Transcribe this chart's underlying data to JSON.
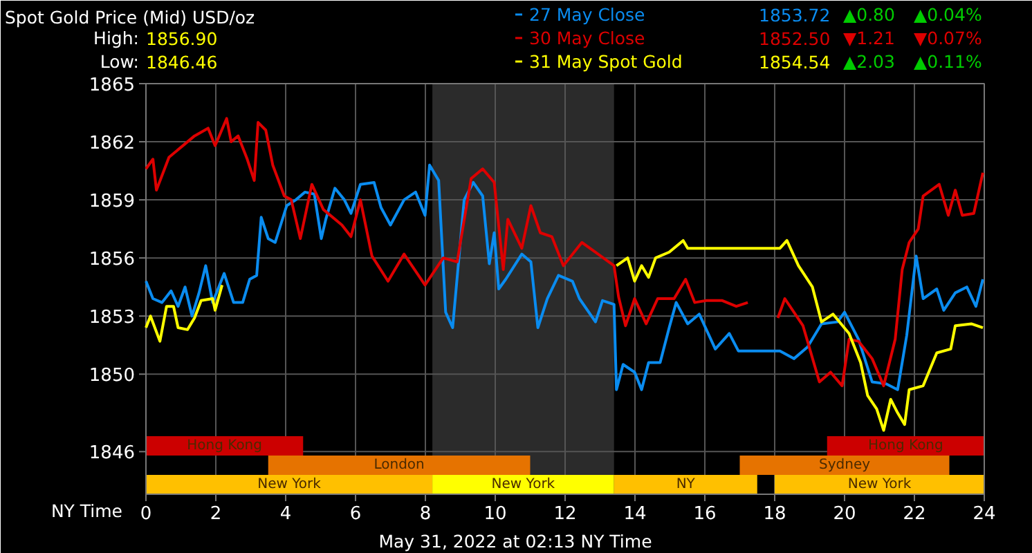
{
  "chart_data": {
    "type": "line",
    "title": "Spot Gold Price (Mid) USD/oz",
    "xlabel": "NY Time",
    "xlim": [
      0,
      24
    ],
    "xticks": [
      0,
      2,
      4,
      6,
      8,
      10,
      12,
      14,
      16,
      18,
      20,
      22,
      24
    ],
    "ylim": [
      1843.8,
      1865
    ],
    "yticks": [
      1850,
      1853,
      1856,
      1859,
      1862,
      1865,
      1846
    ],
    "grid": true,
    "legend": "top right",
    "series": [
      {
        "name": "27 May Close",
        "color": "#0a8cf0",
        "x": [
          0,
          0.2,
          0.46,
          0.72,
          0.92,
          1.12,
          1.32,
          1.52,
          1.71,
          1.91,
          2.24,
          2.51,
          2.77,
          2.97,
          3.17,
          3.3,
          3.5,
          3.7,
          4.03,
          4.29,
          4.55,
          4.82,
          5.02,
          5.15,
          5.41,
          5.68,
          5.87,
          6.14,
          6.53,
          6.73,
          7.0,
          7.39,
          7.72,
          7.99,
          8.12,
          8.38,
          8.58,
          8.78,
          9.11,
          9.37,
          9.64,
          9.83,
          9.97,
          10.1,
          10.3,
          10.76,
          11.02,
          11.22,
          11.49,
          11.81,
          12.21,
          12.41,
          12.87,
          13.07,
          13.4,
          13.47,
          13.66,
          13.99,
          14.19,
          14.39,
          14.72,
          14.98,
          15.18,
          15.51,
          15.84,
          16.3,
          16.7,
          16.96,
          18.15,
          18.55,
          18.94,
          19.34,
          19.8,
          20.0,
          20.4,
          20.79,
          21.19,
          21.52,
          21.78,
          22.05,
          22.25,
          22.64,
          22.84,
          23.17,
          23.5,
          23.76,
          23.96
        ],
        "values": [
          1854.8,
          1853.9,
          1853.7,
          1854.3,
          1853.5,
          1854.5,
          1853.0,
          1854.2,
          1855.6,
          1853.7,
          1855.2,
          1853.7,
          1853.7,
          1854.9,
          1855.1,
          1858.1,
          1857.0,
          1856.8,
          1858.7,
          1859.0,
          1859.4,
          1859.3,
          1857.0,
          1858.0,
          1859.6,
          1859.0,
          1858.3,
          1859.8,
          1859.9,
          1858.6,
          1857.7,
          1859.0,
          1859.4,
          1858.2,
          1860.8,
          1860.0,
          1853.2,
          1852.4,
          1859.0,
          1859.9,
          1859.2,
          1855.7,
          1857.3,
          1854.4,
          1854.9,
          1856.2,
          1855.8,
          1852.4,
          1853.9,
          1855.1,
          1854.8,
          1853.9,
          1852.7,
          1853.8,
          1853.6,
          1849.2,
          1850.5,
          1850.1,
          1849.2,
          1850.6,
          1850.6,
          1852.4,
          1853.7,
          1852.6,
          1853.1,
          1851.3,
          1852.1,
          1851.2,
          1851.2,
          1850.8,
          1851.4,
          1852.6,
          1852.7,
          1853.2,
          1851.8,
          1849.6,
          1849.5,
          1849.2,
          1852.0,
          1856.1,
          1853.9,
          1854.4,
          1853.3,
          1854.2,
          1854.5,
          1853.5,
          1854.9
        ]
      },
      {
        "name": "30 May Close",
        "color": "#dd0000",
        "x": [
          0,
          0.2,
          0.3,
          0.66,
          1.06,
          1.39,
          1.78,
          1.98,
          2.31,
          2.44,
          2.64,
          2.9,
          3.1,
          3.21,
          3.43,
          3.63,
          3.96,
          4.16,
          4.42,
          4.75,
          5.08,
          5.61,
          5.87,
          6.14,
          6.47,
          6.93,
          7.39,
          7.99,
          8.51,
          8.91,
          9.31,
          9.64,
          9.97,
          10.23,
          10.36,
          10.76,
          11.02,
          11.29,
          11.62,
          11.95,
          12.48,
          12.87,
          13.4,
          13.53,
          13.73,
          13.99,
          14.32,
          14.65,
          15.12,
          15.45,
          15.71,
          16.04,
          16.5,
          16.9,
          17.23,
          17.6,
          18.09,
          18.29,
          18.81,
          19.28,
          19.6,
          19.93,
          20.13,
          20.4,
          20.79,
          21.12,
          21.45,
          21.65,
          21.85,
          22.11,
          22.25,
          22.71,
          22.97,
          23.17,
          23.37,
          23.7,
          23.96
        ],
        "values": [
          1860.6,
          1861.1,
          1859.5,
          1861.2,
          1861.8,
          1862.3,
          1862.7,
          1861.8,
          1863.2,
          1862.0,
          1862.3,
          1861.1,
          1860.0,
          1863.0,
          1862.6,
          1860.8,
          1859.2,
          1859.0,
          1857.0,
          1859.8,
          1858.5,
          1857.7,
          1857.1,
          1859.0,
          1856.1,
          1854.8,
          1856.2,
          1854.6,
          1856.0,
          1855.8,
          1860.1,
          1860.6,
          1859.9,
          1855.4,
          1858.0,
          1856.5,
          1858.7,
          1857.3,
          1857.1,
          1855.6,
          1856.8,
          1856.3,
          1855.6,
          1854.0,
          1852.5,
          1853.9,
          1852.6,
          1853.9,
          1853.9,
          1854.9,
          1853.7,
          1853.8,
          1853.8,
          1853.5,
          1853.7,
          null,
          1852.9,
          1853.9,
          1852.5,
          1849.6,
          1850.1,
          1849.4,
          1851.8,
          1851.7,
          1850.8,
          1849.4,
          1851.8,
          1855.4,
          1856.8,
          1857.5,
          1859.2,
          1859.8,
          1858.2,
          1859.5,
          1858.2,
          1858.3,
          1860.4
        ]
      },
      {
        "name": "31 May Spot Gold",
        "color": "#ffff00",
        "x": [
          0,
          0.13,
          0.4,
          0.59,
          0.79,
          0.92,
          1.19,
          1.39,
          1.58,
          1.91,
          1.98,
          2.18,
          8,
          13.47,
          13.79,
          13.99,
          14.19,
          14.39,
          14.59,
          14.98,
          15.38,
          15.51,
          18.15,
          18.35,
          18.68,
          19.08,
          19.34,
          19.67,
          20.13,
          20.46,
          20.66,
          20.92,
          21.12,
          21.32,
          21.52,
          21.72,
          21.85,
          22.25,
          22.64,
          23.04,
          23.17,
          23.63,
          23.96
        ],
        "values": [
          1852.4,
          1853.0,
          1851.7,
          1853.5,
          1853.5,
          1852.4,
          1852.3,
          1852.9,
          1853.8,
          1853.9,
          1853.3,
          1854.6,
          null,
          1855.6,
          1856.0,
          1854.8,
          1855.6,
          1855.0,
          1856.0,
          1856.3,
          1856.9,
          1856.5,
          1856.5,
          1856.9,
          1855.6,
          1854.5,
          1852.7,
          1853.1,
          1852.1,
          1850.6,
          1848.9,
          1848.2,
          1847.1,
          1848.7,
          1848.0,
          1847.4,
          1849.2,
          1849.4,
          1851.1,
          1851.3,
          1852.5,
          1852.6,
          1852.4
        ]
      }
    ],
    "bands": [
      {
        "axis": "x",
        "from": 8.2,
        "to": 13.4,
        "color": "#2b2b2b"
      },
      {
        "axis": "x",
        "from": 0,
        "to": 4.5,
        "label": "Hong Kong",
        "color": "#cc0000"
      },
      {
        "axis": "x",
        "from": 19.5,
        "to": 24,
        "label": "Hong Kong",
        "color": "#cc0000"
      },
      {
        "axis": "x",
        "from": 3.5,
        "to": 11,
        "label": "London",
        "color": "#e67300"
      },
      {
        "axis": "x",
        "from": 17,
        "to": 23,
        "label": "Sydney",
        "color": "#e67300"
      },
      {
        "axis": "x",
        "from": 0,
        "to": 8.2,
        "label": "New York",
        "color": "#ffc000"
      },
      {
        "axis": "x",
        "from": 8.2,
        "to": 13.4,
        "label": "New York",
        "color": "#ffff00"
      },
      {
        "axis": "x",
        "from": 13.4,
        "to": 17.5,
        "label": "NY",
        "color": "#ffc000"
      },
      {
        "axis": "x",
        "from": 18,
        "to": 24,
        "label": "New York",
        "color": "#ffc000"
      }
    ],
    "annotations": [
      "High:",
      "1856.90",
      "Low:",
      "1846.46",
      "1853.72",
      "▲0.80",
      "▲0.04%",
      "1852.50",
      "▼1.21",
      "▼0.07%",
      "1854.54",
      "▲2.03",
      "▲0.11%",
      "May 31, 2022 at 02:13 NY Time"
    ]
  }
}
